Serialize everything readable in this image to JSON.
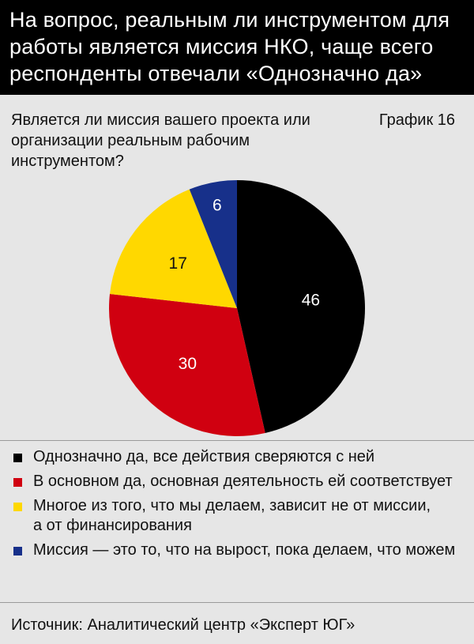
{
  "header": {
    "title": "На вопрос, реальным ли инструментом для\nработы является миссия НКО, чаще всего\nреспонденты отвечали «Однозначно да»"
  },
  "question": "Является ли миссия вашего проекта или\nорганизации реальным рабочим инструментом?",
  "chart_number": "График 16",
  "source": "Источник: Аналитический центр «Эксперт ЮГ»",
  "colors": {
    "black": "#000000",
    "red": "#d00010",
    "yellow": "#ffd800",
    "blue": "#17308a"
  },
  "chart_data": {
    "type": "pie",
    "title": "",
    "categories": [
      "Однозначно да, все действия сверяются с ней",
      "В основном да, основная деятельность ей соответствует",
      "Многое из того, что мы делаем, зависит не от миссии,\nа от финансирования",
      "Миссия — это то, что на вырост, пока делаем, что можем"
    ],
    "values": [
      46,
      30,
      17,
      6
    ],
    "data_labels": [
      "46",
      "30",
      "17",
      "6"
    ],
    "colors": [
      "#000000",
      "#d00010",
      "#ffd800",
      "#17308a"
    ],
    "label_colors": [
      "#ffffff",
      "#ffffff",
      "#111111",
      "#ffffff"
    ],
    "start": "12 o'clock",
    "direction": "clockwise",
    "legend_position": "bottom"
  }
}
